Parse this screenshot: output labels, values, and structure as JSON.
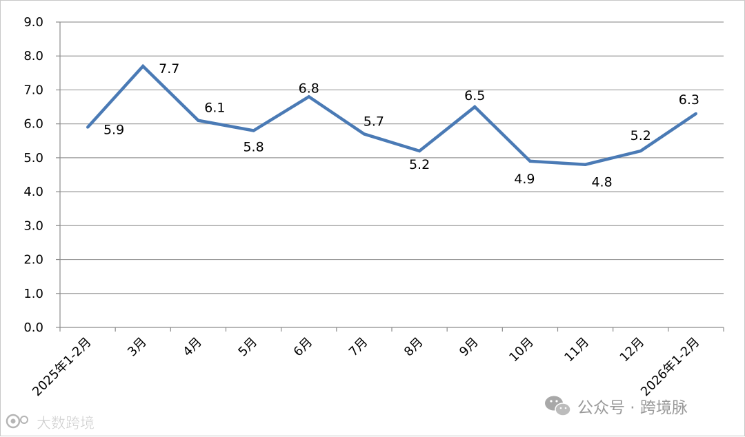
{
  "chart_data": {
    "type": "line",
    "title": "",
    "xlabel": "",
    "ylabel": "",
    "categories": [
      "2025年1-2月",
      "3月",
      "4月",
      "5月",
      "6月",
      "7月",
      "8月",
      "9月",
      "10月",
      "11月",
      "12月",
      "2026年1-2月"
    ],
    "series": [
      {
        "values": [
          5.9,
          7.7,
          6.1,
          5.8,
          6.8,
          5.7,
          5.2,
          6.5,
          4.9,
          4.8,
          5.2,
          6.3
        ],
        "labels": [
          "5.9",
          "7.7",
          "6.1",
          "5.8",
          "6.8",
          "5.7",
          "5.2",
          "6.5",
          "4.9",
          "4.8",
          "5.2",
          "6.3"
        ],
        "color": "#4a7ab5"
      }
    ],
    "ylim": [
      0,
      9
    ],
    "yticks": [
      "0.0",
      "1.0",
      "2.0",
      "3.0",
      "4.0",
      "5.0",
      "6.0",
      "7.0",
      "8.0",
      "9.0"
    ],
    "grid": true,
    "gridColor": "#9a9a9a",
    "legend": "none"
  },
  "watermarks": {
    "wechat_text": "公众号 · 跨境脉",
    "corner_text": "大数跨境"
  }
}
